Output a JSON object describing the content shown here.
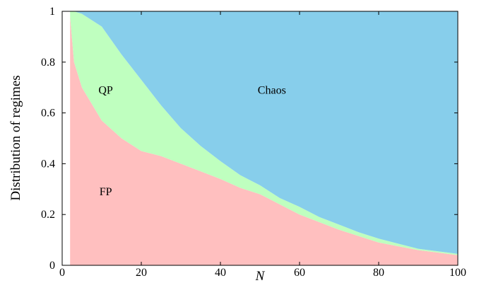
{
  "chart_data": {
    "type": "area",
    "stacked": true,
    "xlabel": "N",
    "ylabel": "Distribution of regimes",
    "xlim": [
      0,
      100
    ],
    "ylim": [
      0,
      1
    ],
    "x_ticks": [
      0,
      20,
      40,
      60,
      80,
      100
    ],
    "y_ticks": [
      0,
      0.2,
      0.4,
      0.6,
      0.8,
      1
    ],
    "y_tick_labels": [
      "0",
      "0.2",
      "0.4",
      "0.6",
      "0.8",
      "1"
    ],
    "x": [
      2,
      3,
      5,
      10,
      15,
      20,
      25,
      30,
      35,
      40,
      45,
      50,
      55,
      60,
      65,
      70,
      75,
      80,
      85,
      90,
      95,
      100
    ],
    "series": [
      {
        "name": "FP",
        "color": "#ffbfbf",
        "values": [
          0.98,
          0.8,
          0.7,
          0.57,
          0.5,
          0.45,
          0.43,
          0.4,
          0.37,
          0.34,
          0.305,
          0.28,
          0.24,
          0.2,
          0.17,
          0.14,
          0.115,
          0.09,
          0.075,
          0.06,
          0.05,
          0.04
        ]
      },
      {
        "name": "QP",
        "color": "#bfffbf",
        "values": [
          0.02,
          0.2,
          0.29,
          0.37,
          0.33,
          0.28,
          0.2,
          0.14,
          0.1,
          0.07,
          0.05,
          0.035,
          0.025,
          0.03,
          0.02,
          0.02,
          0.015,
          0.015,
          0.01,
          0.005,
          0.005,
          0.005
        ]
      },
      {
        "name": "Chaos",
        "color": "#87ceeb",
        "values": [
          0.0,
          0.0,
          0.01,
          0.06,
          0.17,
          0.27,
          0.37,
          0.46,
          0.53,
          0.59,
          0.645,
          0.685,
          0.735,
          0.77,
          0.81,
          0.84,
          0.87,
          0.895,
          0.915,
          0.935,
          0.945,
          0.955
        ]
      }
    ],
    "region_labels": [
      {
        "text": "FP",
        "x": 11,
        "y": 0.29
      },
      {
        "text": "QP",
        "x": 11,
        "y": 0.69
      },
      {
        "text": "Chaos",
        "x": 53,
        "y": 0.69
      }
    ]
  }
}
